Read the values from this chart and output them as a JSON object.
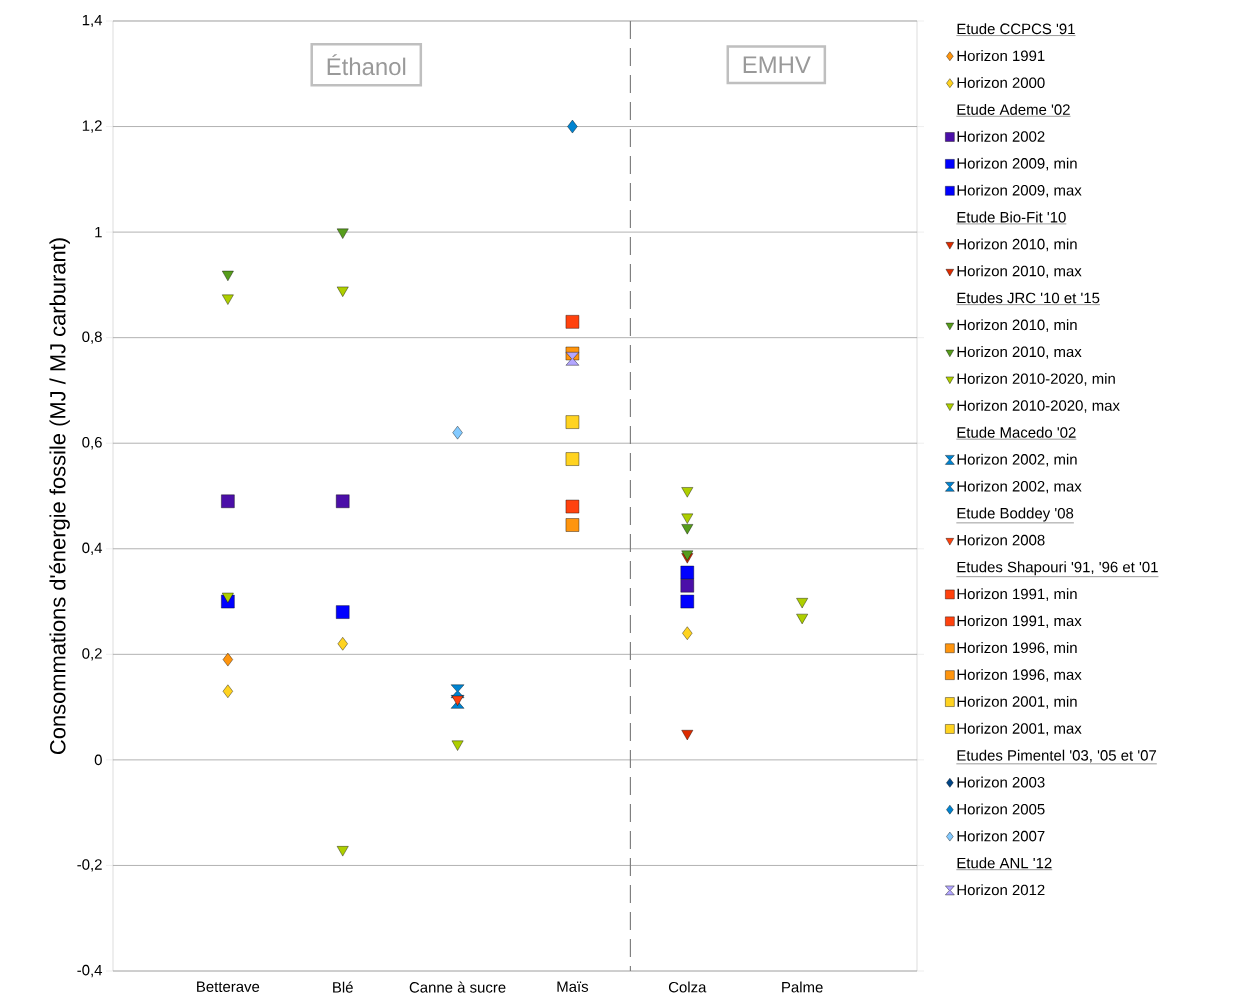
{
  "chart_data": {
    "type": "scatter",
    "ylabel": "Consommations d'énergie fossile (MJ / MJ carburant)",
    "categories": [
      "Betterave",
      "Blé",
      "Canne à sucre",
      "Maïs",
      "Colza",
      "Palme"
    ],
    "ylim": [
      -0.4,
      1.4
    ],
    "yticks": [
      {
        "value": -0.4,
        "label": "-0,4"
      },
      {
        "value": -0.2,
        "label": "-0,2"
      },
      0,
      {
        "value": 0.2,
        "label": "0,2"
      },
      {
        "value": 0.4,
        "label": "0,4"
      },
      {
        "value": 0.6,
        "label": "0,6"
      },
      {
        "value": 0.8,
        "label": "0,8"
      },
      1,
      {
        "value": 1.2,
        "label": "1,2"
      },
      {
        "value": 1.4,
        "label": "1,4"
      }
    ],
    "grid": "y",
    "legend": "right",
    "annotations": [
      "Éthanol",
      "EMHV",
      "Etude CCPCS '91",
      "Etude Ademe '02",
      "Etude Bio-Fit '10",
      "Etudes JRC '10 et '15",
      "Etude Macedo '02",
      "Etude Boddey '08",
      "Etudes Shapouri '91, '96 et '01",
      "Etudes Pimentel '03, '05 et '07",
      "Etude ANL '12"
    ],
    "series": [
      {
        "name": "Horizon 1991",
        "color": "#ff950e",
        "marker": "diamond",
        "values": [
          0.19,
          null,
          null,
          null,
          null,
          null
        ]
      },
      {
        "name": "Horizon 2000",
        "color": "#ffd320",
        "marker": "diamond",
        "values": [
          0.13,
          0.22,
          null,
          null,
          0.24,
          null
        ]
      },
      {
        "name": "Horizon 2002",
        "color": "#4b0fa8",
        "marker": "square",
        "values": [
          0.49,
          0.49,
          null,
          null,
          0.33,
          null
        ]
      },
      {
        "name": "Horizon 2009, min",
        "color": "#0000ff",
        "marker": "square",
        "values": [
          0.3,
          0.28,
          null,
          null,
          0.3,
          null
        ]
      },
      {
        "name": "Horizon 2009, max",
        "color": "#0000ff",
        "marker": "square",
        "values": [
          null,
          null,
          null,
          null,
          0.355,
          null
        ]
      },
      {
        "name": "Horizon 2010, min",
        "color": "#dd2c00",
        "marker": "triangle",
        "values": [
          null,
          null,
          null,
          null,
          0.05,
          null
        ]
      },
      {
        "name": "Horizon 2010, max",
        "color": "#dd2c00",
        "marker": "triangle",
        "values": [
          null,
          null,
          null,
          null,
          0.385,
          null
        ]
      },
      {
        "name": "Horizon 2010, min",
        "color": "#579d1c",
        "marker": "triangle",
        "values": [
          0.92,
          1.0,
          null,
          null,
          0.39,
          null
        ]
      },
      {
        "name": "Horizon 2010, max",
        "color": "#579d1c",
        "marker": "triangle",
        "values": [
          null,
          null,
          null,
          null,
          0.44,
          null
        ]
      },
      {
        "name": "Horizon 2010-2020, min",
        "color": "#aecf00",
        "marker": "triangle",
        "values": [
          0.31,
          -0.17,
          0.03,
          null,
          0.46,
          0.27
        ]
      },
      {
        "name": "Horizon 2010-2020, max",
        "color": "#aecf00",
        "marker": "triangle",
        "values": [
          0.875,
          0.89,
          null,
          null,
          0.51,
          0.3
        ]
      },
      {
        "name": "Horizon 2002, min",
        "color": "#0084d1",
        "values": [
          null,
          null,
          0.11,
          null,
          null,
          null
        ]
      },
      {
        "name": "Horizon 2002, max",
        "color": "#0084d1",
        "values": [
          null,
          null,
          0.13,
          null,
          null,
          null
        ]
      },
      {
        "name": "Horizon 2008",
        "color": "#ff420e",
        "marker": "triangle",
        "values": [
          null,
          null,
          0.115,
          null,
          null,
          null
        ]
      },
      {
        "name": "Horizon 1991, min",
        "color": "#ff420e",
        "marker": "square",
        "values": [
          null,
          null,
          null,
          0.48,
          null,
          null
        ]
      },
      {
        "name": "Horizon 1991, max",
        "color": "#ff420e",
        "marker": "square",
        "values": [
          null,
          null,
          null,
          0.83,
          null,
          null
        ]
      },
      {
        "name": "Horizon 1996, min",
        "color": "#ff950e",
        "marker": "square",
        "values": [
          null,
          null,
          null,
          0.445,
          null,
          null
        ]
      },
      {
        "name": "Horizon 1996, max",
        "color": "#ff950e",
        "marker": "square",
        "values": [
          null,
          null,
          null,
          0.77,
          null,
          null
        ]
      },
      {
        "name": "Horizon 2001, min",
        "color": "#ffd320",
        "marker": "square",
        "values": [
          null,
          null,
          null,
          0.57,
          null,
          null
        ]
      },
      {
        "name": "Horizon 2001, max",
        "color": "#ffd320",
        "marker": "square",
        "values": [
          null,
          null,
          null,
          0.64,
          null,
          null
        ]
      },
      {
        "name": "Horizon 2003",
        "color": "#004586",
        "marker": "diamond",
        "values": [
          null,
          null,
          null,
          null,
          null,
          null
        ]
      },
      {
        "name": "Horizon 2005",
        "color": "#0084d1",
        "marker": "diamond",
        "values": [
          null,
          null,
          null,
          1.2,
          null,
          null
        ]
      },
      {
        "name": "Horizon 2007",
        "color": "#83caff",
        "marker": "diamond",
        "values": [
          null,
          null,
          0.62,
          null,
          null,
          null
        ]
      },
      {
        "name": "Horizon 2012",
        "color": "#b3a6ff",
        "values": [
          null,
          null,
          null,
          0.76,
          null,
          null
        ]
      }
    ]
  }
}
